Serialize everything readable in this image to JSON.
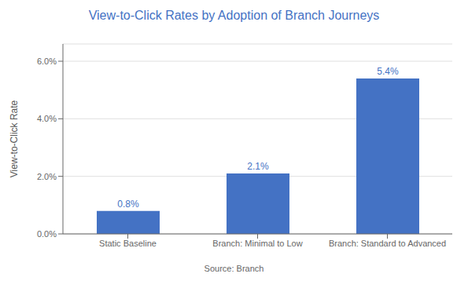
{
  "chart_data": {
    "type": "bar",
    "title": "View-to-Click Rates by Adoption of Branch Journeys",
    "categories": [
      "Static Baseline",
      "Branch: Minimal to Low",
      "Branch: Standard to Advanced"
    ],
    "values": [
      0.008,
      0.021,
      0.054
    ],
    "value_labels": [
      "0.8%",
      "2.1%",
      "5.4%"
    ],
    "data_labels": true,
    "color": "#4472C4",
    "ylabel": "View-to-Click Rate",
    "ylim": [
      0,
      0.066
    ],
    "yticks": [
      {
        "value": 0.0,
        "label": "0.0%"
      },
      {
        "value": 0.02,
        "label": "2.0%"
      },
      {
        "value": 0.04,
        "label": "4.0%"
      },
      {
        "value": 0.06,
        "label": "6.0%"
      }
    ],
    "grid": true,
    "annotations": [
      "Source: Branch"
    ]
  }
}
